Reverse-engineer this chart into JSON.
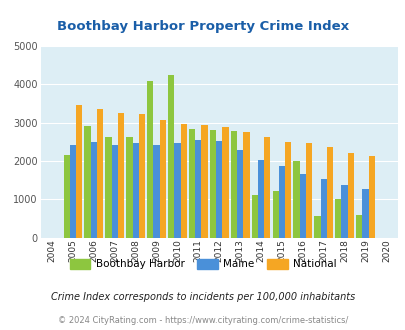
{
  "title": "Boothbay Harbor Property Crime Index",
  "years": [
    2004,
    2005,
    2006,
    2007,
    2008,
    2009,
    2010,
    2011,
    2012,
    2013,
    2014,
    2015,
    2016,
    2017,
    2018,
    2019,
    2020
  ],
  "boothbay": [
    null,
    2150,
    2920,
    2640,
    2620,
    4100,
    4250,
    2850,
    2820,
    2780,
    1120,
    1230,
    2010,
    560,
    1000,
    590,
    null
  ],
  "maine": [
    null,
    2420,
    2510,
    2430,
    2460,
    2430,
    2480,
    2560,
    2520,
    2290,
    2030,
    1870,
    1650,
    1530,
    1380,
    1280,
    null
  ],
  "national": [
    null,
    3460,
    3360,
    3260,
    3220,
    3060,
    2960,
    2940,
    2900,
    2760,
    2640,
    2500,
    2460,
    2360,
    2200,
    2140,
    null
  ],
  "boothbay_color": "#8dc63f",
  "maine_color": "#4a90d9",
  "national_color": "#f5a623",
  "bg_color": "#ddeef5",
  "title_color": "#1a5ea8",
  "grid_color": "#ffffff",
  "footnote1": "Crime Index corresponds to incidents per 100,000 inhabitants",
  "footnote2": "© 2024 CityRating.com - https://www.cityrating.com/crime-statistics/",
  "ylim": [
    0,
    5000
  ],
  "yticks": [
    0,
    1000,
    2000,
    3000,
    4000,
    5000
  ]
}
